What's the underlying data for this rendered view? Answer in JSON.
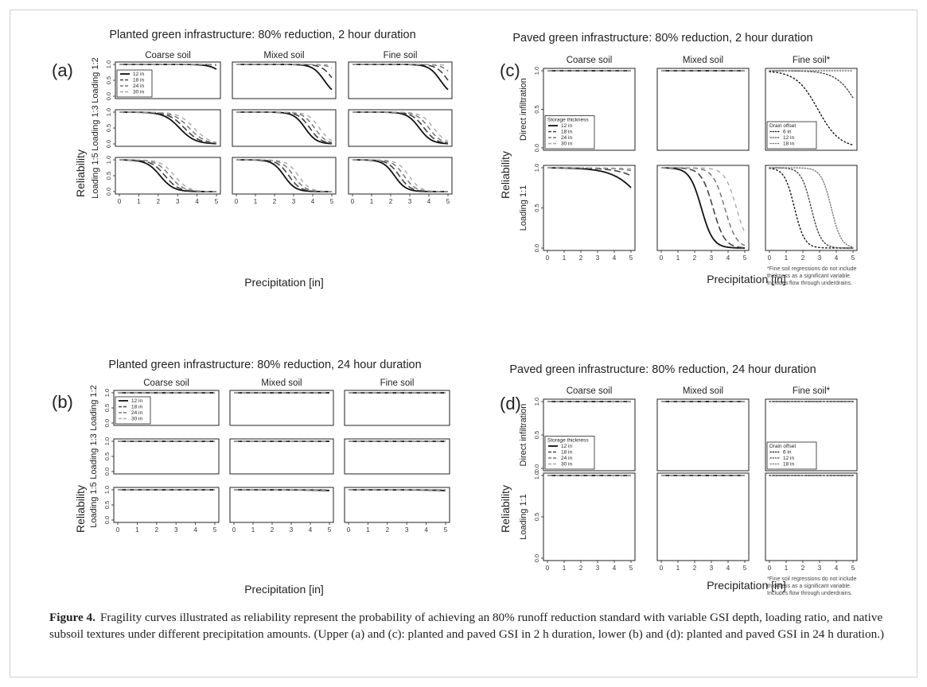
{
  "caption": {
    "label": "Figure 4.",
    "text": "Fragility curves illustrated as reliability represent the probability of achieving an 80% runoff reduction standard with variable GSI depth, loading ratio, and native subsoil textures under different precipitation amounts. (Upper (a) and (c): planted and paved GSI in 2 h duration, lower (b) and (d): planted and paved GSI in 24 h duration.)"
  },
  "series_colors": [
    "#111111",
    "#444444",
    "#777777",
    "#a8a8a8"
  ],
  "chart_data": [
    {
      "type": "line",
      "panel_label": "(a)",
      "title": "Planted green infrastructure: 80% reduction, 2 hour duration",
      "xlabel": "Precipitation [in]",
      "ylabel": "Reliability",
      "columns": [
        "Coarse soil",
        "Mixed soil",
        "Fine soil"
      ],
      "rows": [
        "Loading 1:2",
        "Loading 1:3",
        "Loading 1:5"
      ],
      "xlim": [
        0,
        5
      ],
      "ylim": [
        0,
        1
      ],
      "xticks": [
        "0",
        "1",
        "2",
        "3",
        "4",
        "5"
      ],
      "yticks": [
        "0.0",
        "0.5",
        "1.0"
      ],
      "legend": {
        "title": "",
        "entries": [
          "12 in",
          "18 in",
          "24 in",
          "30 in"
        ],
        "placement": "bottom-left of row 1, Coarse soil"
      },
      "curves": [
        [
          {
            "x50": [
              5.6,
              6.3,
              7.0,
              7.8
            ],
            "w": 0.35
          },
          {
            "x50": [
              4.6,
              5.1,
              5.6,
              6.1
            ],
            "w": 0.3
          },
          {
            "x50": [
              4.6,
              5.0,
              5.4,
              5.9
            ],
            "w": 0.3
          }
        ],
        [
          {
            "x50": [
              3.1,
              3.35,
              3.6,
              3.85
            ],
            "w": 0.4
          },
          {
            "x50": [
              3.6,
              3.85,
              4.1,
              4.35
            ],
            "w": 0.3
          },
          {
            "x50": [
              3.5,
              3.75,
              4.0,
              4.25
            ],
            "w": 0.32
          }
        ],
        [
          {
            "x50": [
              2.1,
              2.35,
              2.6,
              2.85
            ],
            "w": 0.35
          },
          {
            "x50": [
              2.5,
              2.75,
              3.0,
              3.25
            ],
            "w": 0.3
          },
          {
            "x50": [
              2.2,
              2.45,
              2.7,
              2.95
            ],
            "w": 0.3
          }
        ]
      ]
    },
    {
      "type": "line",
      "panel_label": "(b)",
      "title": "Planted green infrastructure: 80% reduction, 24 hour duration",
      "xlabel": "Precipitation [in]",
      "ylabel": "Reliability",
      "columns": [
        "Coarse soil",
        "Mixed soil",
        "Fine soil"
      ],
      "rows": [
        "Loading 1:2",
        "Loading 1:3",
        "Loading 1:5"
      ],
      "xlim": [
        0,
        5
      ],
      "ylim": [
        0,
        1
      ],
      "xticks": [
        "0",
        "1",
        "2",
        "3",
        "4",
        "5"
      ],
      "yticks": [
        "0.0",
        "0.5",
        "1.0"
      ],
      "legend": {
        "title": "",
        "entries": [
          "12 in",
          "18 in",
          "24 in",
          "30 in"
        ],
        "placement": "bottom-left of row 1, Coarse soil"
      },
      "curves": [
        [
          {
            "x50": [
              40,
              42,
              44,
              46
            ],
            "w": 1
          },
          {
            "x50": [
              40,
              42,
              44,
              46
            ],
            "w": 1
          },
          {
            "x50": [
              40,
              42,
              44,
              46
            ],
            "w": 1
          }
        ],
        [
          {
            "x50": [
              40,
              42,
              44,
              46
            ],
            "w": 1
          },
          {
            "x50": [
              40,
              42,
              44,
              46
            ],
            "w": 1
          },
          {
            "x50": [
              40,
              42,
              44,
              46
            ],
            "w": 1
          }
        ],
        [
          {
            "x50": [
              40,
              42,
              44,
              46
            ],
            "w": 1
          },
          {
            "x50": [
              9.5,
              12,
              14,
              16
            ],
            "w": 1.2
          },
          {
            "x50": [
              9.5,
              12,
              14,
              16
            ],
            "w": 1.2
          }
        ]
      ]
    },
    {
      "type": "line",
      "panel_label": "(c)",
      "title": "Paved green infrastructure: 80% reduction, 2 hour duration",
      "xlabel": "Precipitation [in]",
      "ylabel": "Reliability",
      "columns": [
        "Coarse soil",
        "Mixed soil",
        "Fine soil*"
      ],
      "rows": [
        "Direct infiltration",
        "Loading 1:1"
      ],
      "xlim": [
        0,
        5
      ],
      "ylim": [
        0,
        1
      ],
      "xticks": [
        "0",
        "1",
        "2",
        "3",
        "4",
        "5"
      ],
      "yticks": [
        "0.0",
        "0.5",
        "1.0"
      ],
      "legend": {
        "title": "Storage thickness",
        "entries": [
          "12 in",
          "18 in",
          "24 in",
          "30 in"
        ],
        "placement": "bottom-left of row 1, Coarse soil"
      },
      "legend_fine": {
        "title": "Drain offset",
        "entries": [
          "6 in",
          "12 in",
          "18 in"
        ],
        "placement": "bottom-left of row 1, Fine soil"
      },
      "footnote": [
        "*Fine soil regressions do not include",
        "thickness as a significant variable.",
        "Includes flow through underdrains."
      ],
      "curves": [
        [
          {
            "x50": [
              40,
              42,
              44,
              46
            ],
            "w": 1
          },
          {
            "x50": [
              40,
              42,
              44,
              46
            ],
            "w": 1
          },
          {
            "x50": [
              2.9,
              5.4,
              40
            ],
            "w": 0.65,
            "dotted": true
          }
        ],
        [
          {
            "x50": [
              6.0,
              7.0,
              8.0,
              9.0
            ],
            "w": 0.9
          },
          {
            "x50": [
              2.4,
              3.1,
              3.8,
              4.5
            ],
            "w": 0.35
          },
          {
            "x50": [
              1.5,
              2.5,
              3.7
            ],
            "w": 0.3,
            "dotted": true
          }
        ]
      ]
    },
    {
      "type": "line",
      "panel_label": "(d)",
      "title": "Paved green infrastructure: 80% reduction, 24 hour duration",
      "xlabel": "Precipitation [in]",
      "ylabel": "Reliability",
      "columns": [
        "Coarse soil",
        "Mixed soil",
        "Fine soil*"
      ],
      "rows": [
        "Direct infiltration",
        "Loading 1:1"
      ],
      "xlim": [
        0,
        5
      ],
      "ylim": [
        0,
        1
      ],
      "xticks": [
        "0",
        "1",
        "2",
        "3",
        "4",
        "5"
      ],
      "yticks": [
        "0.0",
        "0.5",
        "1.0"
      ],
      "legend": {
        "title": "Storage thickness",
        "entries": [
          "12 in",
          "18 in",
          "24 in",
          "30 in"
        ],
        "placement": "bottom-left of row 1, Coarse soil"
      },
      "legend_fine": {
        "title": "Drain offset",
        "entries": [
          "6 in",
          "12 in",
          "18 in"
        ],
        "placement": "bottom-left of row 1, Fine soil"
      },
      "footnote": [
        "*Fine soil regressions do not include",
        "thickness as a significant variable.",
        "Includes flow through underdrains."
      ],
      "curves": [
        [
          {
            "x50": [
              40,
              42,
              44,
              46
            ],
            "w": 1
          },
          {
            "x50": [
              40,
              42,
              44,
              46
            ],
            "w": 1
          },
          {
            "x50": [
              40,
              42,
              44
            ],
            "w": 1,
            "dotted": true
          }
        ],
        [
          {
            "x50": [
              40,
              42,
              44,
              46
            ],
            "w": 1
          },
          {
            "x50": [
              40,
              42,
              44,
              46
            ],
            "w": 1
          },
          {
            "x50": [
              40,
              42,
              44
            ],
            "w": 1,
            "dotted": true
          }
        ]
      ]
    }
  ]
}
